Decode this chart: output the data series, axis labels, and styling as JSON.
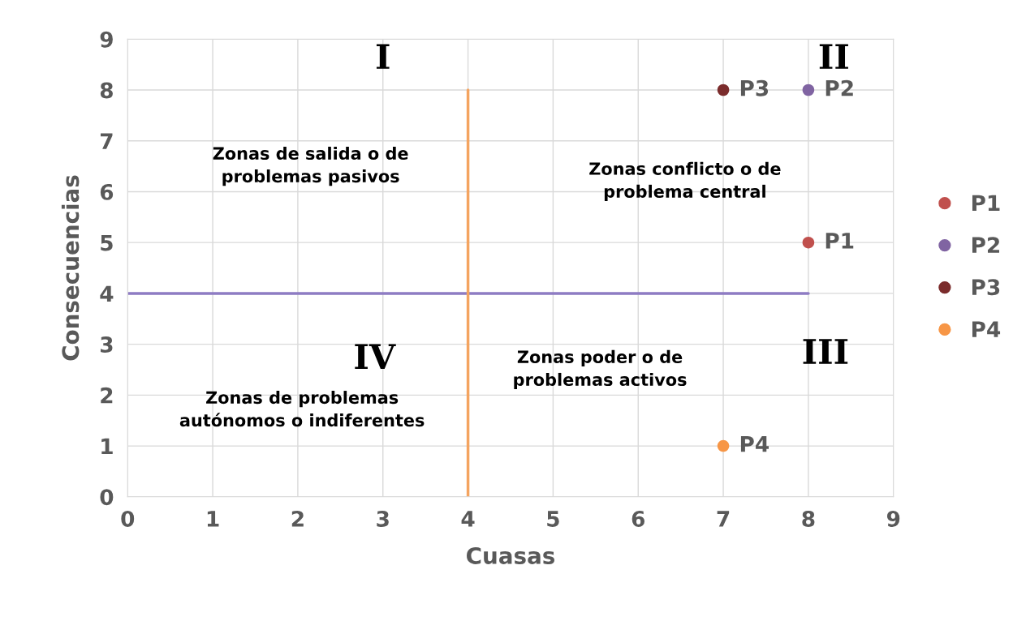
{
  "chart_data": {
    "type": "scatter",
    "xlabel": "Cuasas",
    "ylabel": "Consecuencias",
    "xlim": [
      0,
      9
    ],
    "ylim": [
      0,
      9
    ],
    "xticks": [
      0,
      1,
      2,
      3,
      4,
      5,
      6,
      7,
      8,
      9
    ],
    "yticks": [
      0,
      1,
      2,
      3,
      4,
      5,
      6,
      7,
      8,
      9
    ],
    "grid": true,
    "legend": "right",
    "marker": "circle",
    "series": [
      {
        "type": "line",
        "color": "#8e7cc3",
        "marker": "none",
        "x": [
          0,
          8
        ],
        "values": [
          4,
          4
        ]
      },
      {
        "type": "line",
        "color": "#f4a460",
        "marker": "none",
        "x": [
          4,
          4
        ],
        "values": [
          0,
          8
        ]
      },
      {
        "name": "P1",
        "color": "#c0504d",
        "x": [
          8
        ],
        "values": [
          5
        ]
      },
      {
        "name": "P2",
        "color": "#8064a2",
        "x": [
          8
        ],
        "values": [
          8
        ]
      },
      {
        "name": "P3",
        "color": "#7b2c2c",
        "x": [
          7
        ],
        "values": [
          8
        ]
      },
      {
        "name": "P4",
        "color": "#f79646",
        "x": [
          7
        ],
        "values": [
          1
        ]
      }
    ],
    "annotations": [
      "I",
      "II",
      "III",
      "IV",
      "Zonas de salida o de\nproblemas pasivos",
      "Zonas conflicto o de\nproblema central",
      "Zonas poder o de\nproblemas activos",
      "Zonas de problemas\nautónomos o indiferentes"
    ]
  }
}
